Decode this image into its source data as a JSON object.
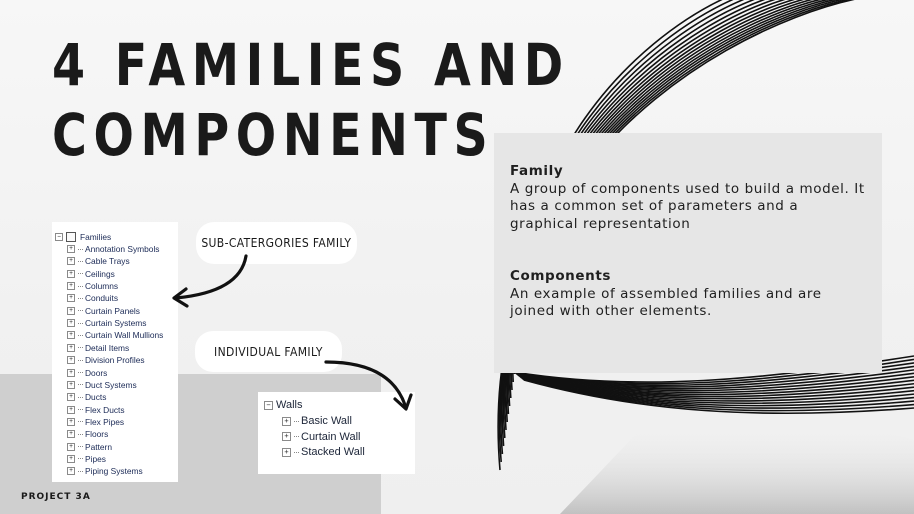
{
  "slide": {
    "title_line1": "4 FAMILIES AND",
    "title_line2": "COMPONENTS",
    "footer": "PROJECT 3A"
  },
  "info": {
    "family_heading": "Family",
    "family_text": "A group of components used to build a model. It has a common set of parameters and a graphical representation",
    "components_heading": "Components",
    "components_text": "An example of assembled families and are joined with other elements."
  },
  "callouts": {
    "sub_categories": "SUB-CATERGORIES FAMILY",
    "individual": "INDIVIDUAL FAMILY"
  },
  "families_tree": {
    "root_label": "Families",
    "root_expander": "−",
    "item_expander": "+",
    "items": [
      "Annotation Symbols",
      "Cable Trays",
      "Ceilings",
      "Columns",
      "Conduits",
      "Curtain Panels",
      "Curtain Systems",
      "Curtain Wall Mullions",
      "Detail Items",
      "Division Profiles",
      "Doors",
      "Duct Systems",
      "Ducts",
      "Flex Ducts",
      "Flex Pipes",
      "Floors",
      "Pattern",
      "Pipes",
      "Piping Systems"
    ]
  },
  "walls_tree": {
    "root_label": "Walls",
    "root_expander": "−",
    "item_expander": "+",
    "items": [
      "Basic Wall",
      "Curtain Wall",
      "Stacked Wall"
    ]
  },
  "colors": {
    "title": "#1a1a1a",
    "info_box": "#e6e6e6",
    "bottom_band": "#cfcfcf",
    "tree_text": "#1b2a56"
  }
}
